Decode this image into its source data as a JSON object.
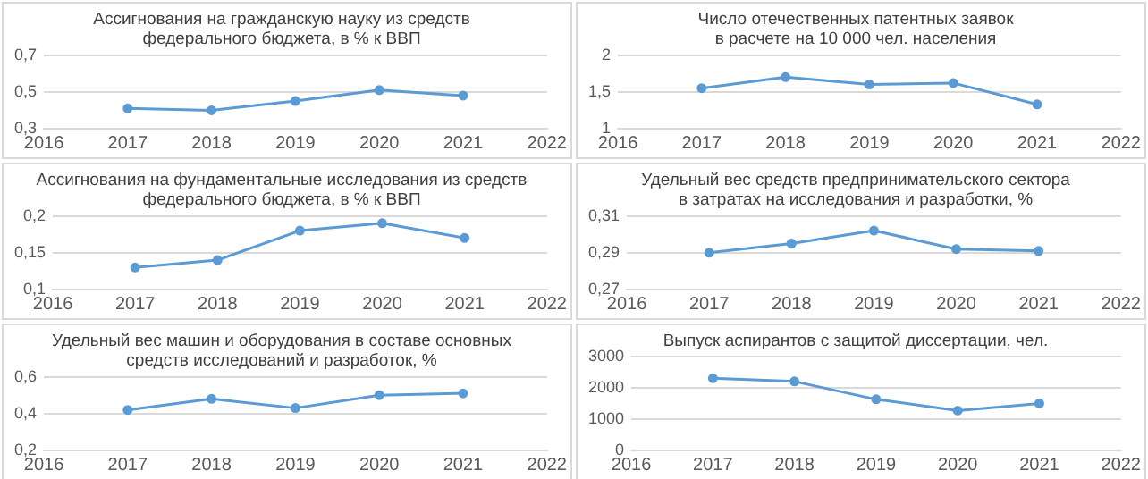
{
  "chart_data": [
    {
      "type": "line",
      "title": "Ассигнования на гражданскую науку из средств\nфедерального бюджета, в % к ВВП",
      "x": [
        2017,
        2018,
        2019,
        2020,
        2021
      ],
      "series": [
        {
          "color": "#5b9bd5",
          "values": [
            0.41,
            0.4,
            0.45,
            0.51,
            0.48
          ]
        }
      ],
      "xlim": [
        2016,
        2022
      ],
      "xticks": [
        2016,
        2017,
        2018,
        2019,
        2020,
        2021,
        2022
      ],
      "ylim": [
        0.3,
        0.7
      ],
      "yticks": [
        {
          "value": 0.3,
          "label": "0,3"
        },
        {
          "value": 0.5,
          "label": "0,5"
        },
        {
          "value": 0.7,
          "label": "0,7"
        }
      ],
      "grid": "y",
      "legend": false,
      "marker": "circle",
      "line_style": "solid"
    },
    {
      "type": "line",
      "title": "Число отечественных патентных заявок\nв расчете на 10 000 чел. населения",
      "x": [
        2017,
        2018,
        2019,
        2020,
        2021
      ],
      "series": [
        {
          "color": "#5b9bd5",
          "values": [
            1.55,
            1.7,
            1.6,
            1.62,
            1.33
          ]
        }
      ],
      "xlim": [
        2016,
        2022
      ],
      "xticks": [
        2016,
        2017,
        2018,
        2019,
        2020,
        2021,
        2022
      ],
      "ylim": [
        1,
        2
      ],
      "yticks": [
        1,
        {
          "value": 1.5,
          "label": "1,5"
        },
        2
      ],
      "grid": "y",
      "legend": false,
      "marker": "circle",
      "line_style": "solid"
    },
    {
      "type": "line",
      "title": "Ассигнования на фундаментальные исследования из средств\nфедерального бюджета, в % к ВВП",
      "x": [
        2017,
        2018,
        2019,
        2020,
        2021
      ],
      "series": [
        {
          "color": "#5b9bd5",
          "values": [
            0.13,
            0.14,
            0.18,
            0.19,
            0.17
          ]
        }
      ],
      "xlim": [
        2016,
        2022
      ],
      "xticks": [
        2016,
        2017,
        2018,
        2019,
        2020,
        2021,
        2022
      ],
      "ylim": [
        0.1,
        0.2
      ],
      "yticks": [
        {
          "value": 0.1,
          "label": "0,1"
        },
        {
          "value": 0.15,
          "label": "0,15"
        },
        {
          "value": 0.2,
          "label": "0,2"
        }
      ],
      "grid": "y",
      "legend": false,
      "marker": "circle",
      "line_style": "solid"
    },
    {
      "type": "line",
      "title": "Удельный вес средств предпринимательского сектора\nв затратах на исследования и разработки, %",
      "x": [
        2017,
        2018,
        2019,
        2020,
        2021
      ],
      "series": [
        {
          "color": "#5b9bd5",
          "values": [
            0.29,
            0.295,
            0.302,
            0.292,
            0.291
          ]
        }
      ],
      "xlim": [
        2016,
        2022
      ],
      "xticks": [
        2016,
        2017,
        2018,
        2019,
        2020,
        2021,
        2022
      ],
      "ylim": [
        0.27,
        0.31
      ],
      "yticks": [
        {
          "value": 0.27,
          "label": "0,27"
        },
        {
          "value": 0.29,
          "label": "0,29"
        },
        {
          "value": 0.31,
          "label": "0,31"
        }
      ],
      "grid": "y",
      "legend": false,
      "marker": "circle",
      "line_style": "solid"
    },
    {
      "type": "line",
      "title": "Удельный вес машин и оборудования в составе основных\nсредств исследований и разработок, %",
      "x": [
        2017,
        2018,
        2019,
        2020,
        2021
      ],
      "series": [
        {
          "color": "#5b9bd5",
          "values": [
            0.42,
            0.48,
            0.43,
            0.5,
            0.51
          ]
        }
      ],
      "xlim": [
        2016,
        2022
      ],
      "xticks": [
        2016,
        2017,
        2018,
        2019,
        2020,
        2021,
        2022
      ],
      "ylim": [
        0.2,
        0.6
      ],
      "yticks": [
        {
          "value": 0.2,
          "label": "0,2"
        },
        {
          "value": 0.4,
          "label": "0,4"
        },
        {
          "value": 0.6,
          "label": "0,6"
        }
      ],
      "grid": "y",
      "legend": false,
      "marker": "circle",
      "line_style": "solid"
    },
    {
      "type": "line",
      "title": "Выпуск аспирантов с защитой диссертации, чел.",
      "x": [
        2017,
        2018,
        2019,
        2020,
        2021
      ],
      "series": [
        {
          "color": "#5b9bd5",
          "values": [
            2300,
            2200,
            1630,
            1270,
            1500
          ]
        }
      ],
      "xlim": [
        2016,
        2022
      ],
      "xticks": [
        2016,
        2017,
        2018,
        2019,
        2020,
        2021,
        2022
      ],
      "ylim": [
        0,
        3000
      ],
      "yticks": [
        0,
        1000,
        2000,
        3000
      ],
      "grid": "y",
      "legend": false,
      "marker": "circle",
      "line_style": "solid"
    }
  ]
}
